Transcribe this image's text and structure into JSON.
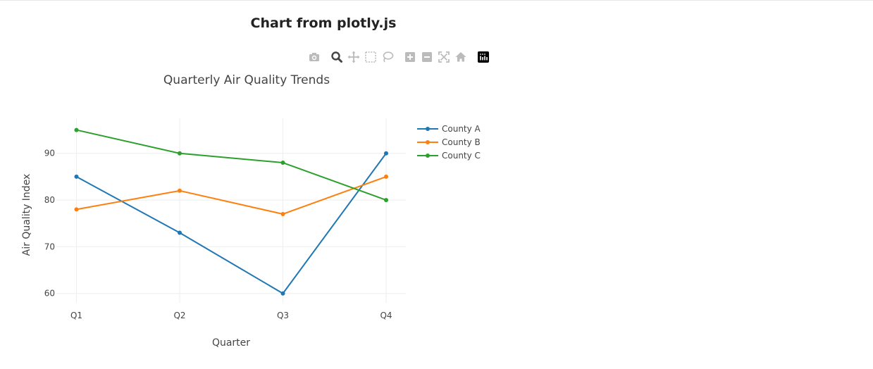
{
  "page": {
    "title": "Chart from plotly.js"
  },
  "modebar": {
    "icons": [
      {
        "name": "camera-icon",
        "color": "#bbbbbb"
      },
      {
        "name": "zoom-icon",
        "color": "#444444",
        "active": true
      },
      {
        "name": "pan-icon",
        "color": "#bbbbbb"
      },
      {
        "name": "box-select-icon",
        "color": "#bbbbbb"
      },
      {
        "name": "lasso-select-icon",
        "color": "#bbbbbb"
      },
      {
        "name": "zoom-in-icon",
        "color": "#bbbbbb"
      },
      {
        "name": "zoom-out-icon",
        "color": "#bbbbbb"
      },
      {
        "name": "autoscale-icon",
        "color": "#bbbbbb"
      },
      {
        "name": "reset-axes-icon",
        "color": "#bbbbbb"
      },
      {
        "name": "plotly-logo-icon",
        "color": "#000000"
      }
    ]
  },
  "chart_data": {
    "type": "line",
    "title": "Quarterly Air Quality Trends",
    "xlabel": "Quarter",
    "ylabel": "Air Quality Index",
    "categories": [
      "Q1",
      "Q2",
      "Q3",
      "Q4"
    ],
    "ylim": [
      58,
      97.5
    ],
    "yticks": [
      60,
      70,
      80,
      90
    ],
    "grid": true,
    "legend_position": "top-right",
    "series": [
      {
        "name": "County A",
        "color": "#1f77b4",
        "values": [
          85,
          73,
          60,
          90
        ]
      },
      {
        "name": "County B",
        "color": "#ff7f0e",
        "values": [
          78,
          82,
          77,
          85
        ]
      },
      {
        "name": "County C",
        "color": "#2ca02c",
        "values": [
          95,
          90,
          88,
          80
        ]
      }
    ]
  }
}
